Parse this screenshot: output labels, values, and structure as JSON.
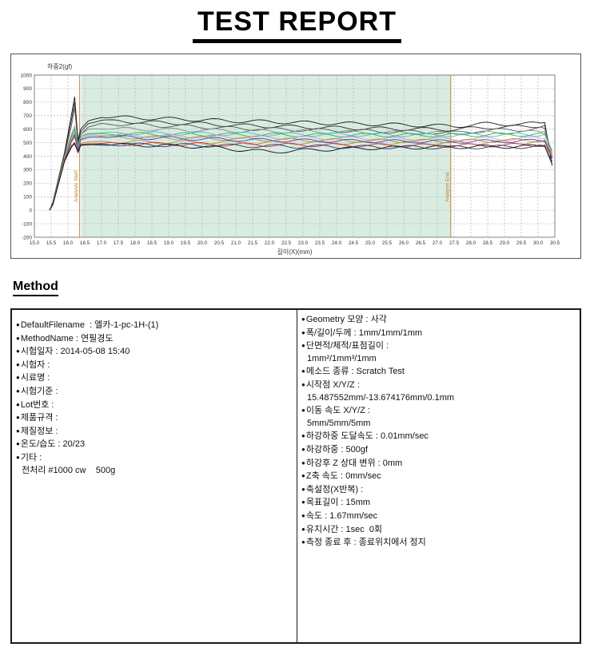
{
  "title": "TEST REPORT",
  "method": {
    "heading": "Method",
    "left_items": [
      {
        "bullet": true,
        "text": "DefaultFilename  : 엘카-1-pc-1H-(1)"
      },
      {
        "bullet": true,
        "text": "MethodName : 연필경도"
      },
      {
        "bullet": true,
        "text": "시험일자 : 2014-05-08 15:40"
      },
      {
        "bullet": true,
        "text": "시험자 :"
      },
      {
        "bullet": true,
        "text": "시료명 :"
      },
      {
        "bullet": true,
        "text": "시험기준 :"
      },
      {
        "bullet": true,
        "text": "Lot번호 :"
      },
      {
        "bullet": true,
        "text": "제품규격 :"
      },
      {
        "bullet": true,
        "text": "제질정보 :"
      },
      {
        "bullet": true,
        "text": "온도/습도 : 20/23"
      },
      {
        "bullet": true,
        "text": "기타 :"
      },
      {
        "bullet": false,
        "text": "전처리 #1000 cw    500g"
      }
    ],
    "right_items": [
      {
        "bullet": true,
        "text": "Geometry 모양 : 사각"
      },
      {
        "bullet": true,
        "text": "폭/길이/두께 : 1mm/1mm/1mm"
      },
      {
        "bullet": true,
        "text": "단면적/체적/표점길이 :"
      },
      {
        "bullet": false,
        "text": "1mm²/1mm³/1mm"
      },
      {
        "bullet": true,
        "text": "메소드 종류 : Scratch Test"
      },
      {
        "bullet": true,
        "text": "시작점 X/Y/Z :"
      },
      {
        "bullet": false,
        "text": "15.487552mm/-13.674176mm/0.1mm"
      },
      {
        "bullet": true,
        "text": "이동 속도 X/Y/Z :"
      },
      {
        "bullet": false,
        "text": "5mm/5mm/5mm"
      },
      {
        "bullet": true,
        "text": "하강하중 도달속도 : 0.01mm/sec"
      },
      {
        "bullet": true,
        "text": "하강하중 : 500gf"
      },
      {
        "bullet": true,
        "text": "하강후 Z 상대 변위 : 0mm"
      },
      {
        "bullet": true,
        "text": "Z축 속도 : 0mm/sec"
      },
      {
        "bullet": true,
        "text": "축설정(X반복) :"
      },
      {
        "bullet": true,
        "text": "목표길이 : 15mm"
      },
      {
        "bullet": true,
        "text": "속도 : 1.67mm/sec"
      },
      {
        "bullet": true,
        "text": "유지시간 : 1sec  0회"
      },
      {
        "bullet": true,
        "text": "측정 종료 후 : 종료위치에서 정지"
      }
    ]
  },
  "chart_data": {
    "type": "line",
    "title": "하중2(gf)",
    "xlabel": "길이(X)(mm)",
    "ylabel": "하중2(gf)",
    "xlim": [
      15.0,
      30.5
    ],
    "ylim": [
      -200,
      1000
    ],
    "xtick_step": 0.5,
    "ytick_step": 100,
    "grid": true,
    "legend": "none",
    "region": {
      "from": 16.4,
      "to": 27.4,
      "label": "analysis-range"
    },
    "markers": [
      {
        "x": 16.35,
        "label": "Analysis Start"
      },
      {
        "x": 27.4,
        "label": "Analysis End"
      }
    ],
    "colors": {
      "region": "#d8ece2",
      "grid": "#b5b5b5",
      "axis": "#808080",
      "marker": "#c08030",
      "text": "#333333"
    },
    "x": [
      15.45,
      15.55,
      15.9,
      16.1,
      16.2,
      16.3,
      16.38,
      16.6,
      17.0,
      17.5,
      18.5,
      20.0,
      21.0,
      22.0,
      23.5,
      25.0,
      26.5,
      27.5,
      28.5,
      29.5,
      30.2,
      30.42
    ],
    "series": [
      {
        "name": "trace-1",
        "color": "#1a1a1a",
        "values": [
          0,
          60,
          430,
          700,
          840,
          520,
          600,
          660,
          690,
          688,
          680,
          668,
          660,
          655,
          645,
          638,
          628,
          622,
          640,
          635,
          648,
          330
        ]
      },
      {
        "name": "trace-2",
        "color": "#2a2a2a",
        "values": [
          0,
          55,
          420,
          660,
          800,
          500,
          580,
          640,
          665,
          660,
          650,
          640,
          628,
          622,
          612,
          605,
          600,
          598,
          612,
          618,
          628,
          380
        ]
      },
      {
        "name": "trace-3",
        "color": "#555555",
        "values": [
          0,
          50,
          410,
          620,
          760,
          480,
          560,
          615,
          640,
          636,
          628,
          616,
          605,
          600,
          592,
          585,
          578,
          572,
          590,
          596,
          605,
          400
        ]
      },
      {
        "name": "trace-4",
        "color": "#888888",
        "values": [
          0,
          45,
          400,
          560,
          620,
          470,
          560,
          600,
          605,
          602,
          598,
          592,
          588,
          585,
          580,
          576,
          572,
          570,
          574,
          576,
          580,
          420
        ]
      },
      {
        "name": "trace-5",
        "color": "#3ec6c6",
        "values": [
          0,
          48,
          390,
          540,
          580,
          460,
          545,
          568,
          572,
          570,
          568,
          566,
          564,
          562,
          560,
          558,
          557,
          556,
          558,
          560,
          562,
          430
        ]
      },
      {
        "name": "trace-6",
        "color": "#2db84a",
        "values": [
          0,
          52,
          395,
          545,
          600,
          465,
          548,
          562,
          566,
          564,
          562,
          560,
          558,
          557,
          556,
          556,
          555,
          556,
          558,
          560,
          562,
          440
        ]
      },
      {
        "name": "trace-7",
        "color": "#ee85b8",
        "values": [
          0,
          47,
          385,
          530,
          570,
          455,
          535,
          552,
          556,
          554,
          550,
          546,
          542,
          538,
          534,
          530,
          527,
          525,
          528,
          530,
          532,
          420
        ]
      },
      {
        "name": "trace-8",
        "color": "#9a9a40",
        "values": [
          0,
          44,
          380,
          520,
          560,
          450,
          525,
          540,
          545,
          542,
          538,
          532,
          527,
          522,
          518,
          515,
          513,
          512,
          515,
          517,
          519,
          410
        ]
      },
      {
        "name": "trace-9",
        "color": "#c8862e",
        "values": [
          0,
          46,
          375,
          500,
          540,
          445,
          495,
          505,
          508,
          506,
          504,
          502,
          500,
          499,
          498,
          497,
          497,
          498,
          500,
          502,
          504,
          400
        ]
      },
      {
        "name": "trace-10",
        "color": "#4040cc",
        "values": [
          0,
          42,
          370,
          510,
          555,
          440,
          520,
          540,
          544,
          540,
          535,
          528,
          522,
          518,
          514,
          511,
          509,
          508,
          510,
          512,
          514,
          380
        ]
      },
      {
        "name": "trace-11",
        "color": "#cc3333",
        "values": [
          0,
          43,
          368,
          480,
          500,
          435,
          488,
          492,
          494,
          492,
          490,
          488,
          486,
          484,
          482,
          480,
          479,
          478,
          480,
          482,
          484,
          390
        ]
      },
      {
        "name": "trace-12",
        "color": "#333377",
        "values": [
          0,
          40,
          365,
          470,
          490,
          430,
          482,
          486,
          488,
          486,
          483,
          480,
          477,
          474,
          471,
          468,
          466,
          465,
          468,
          470,
          472,
          360
        ]
      },
      {
        "name": "trace-13",
        "color": "#101010",
        "values": [
          0,
          41,
          362,
          465,
          495,
          428,
          480,
          484,
          486,
          484,
          480,
          470,
          450,
          432,
          448,
          460,
          465,
          468,
          470,
          472,
          474,
          340
        ]
      }
    ]
  }
}
